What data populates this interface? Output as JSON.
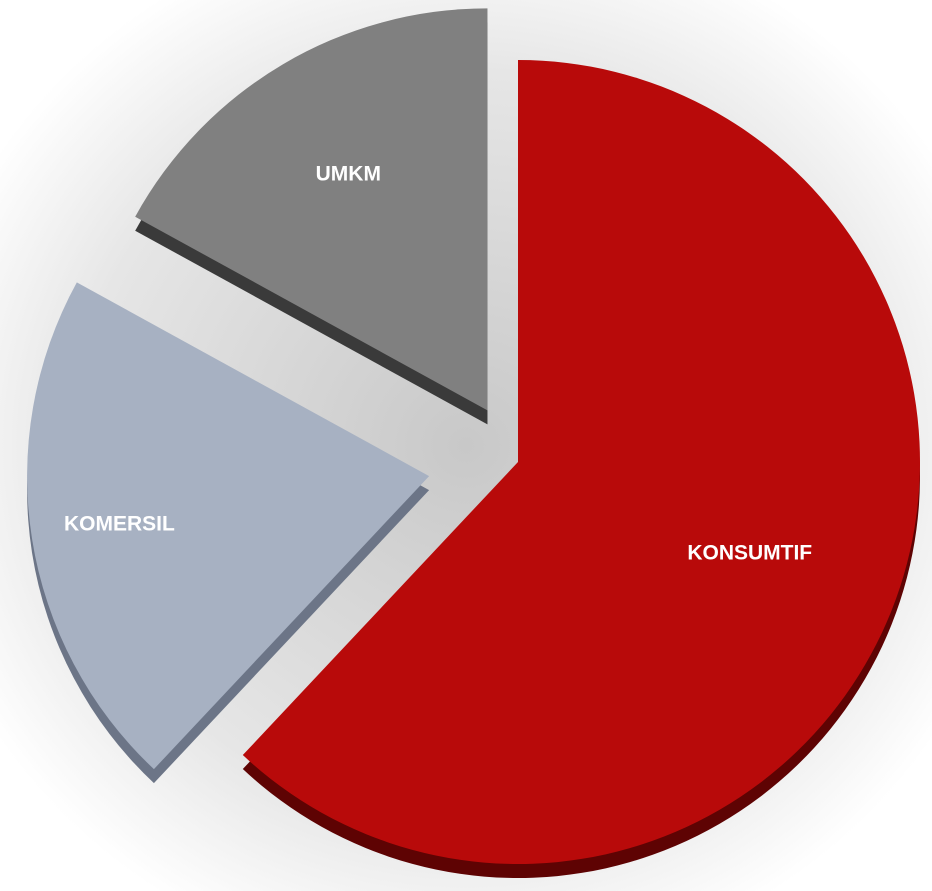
{
  "chart_data": {
    "type": "pie",
    "categories": [
      "KONSUMTIF",
      "KOMERSIL",
      "UMKM"
    ],
    "values": [
      62,
      21,
      17
    ],
    "colors": [
      "#b80a0a",
      "#a7b1c2",
      "#808080"
    ],
    "side_colors": [
      "#5e0303",
      "#6c7587",
      "#3a3a3a"
    ]
  }
}
